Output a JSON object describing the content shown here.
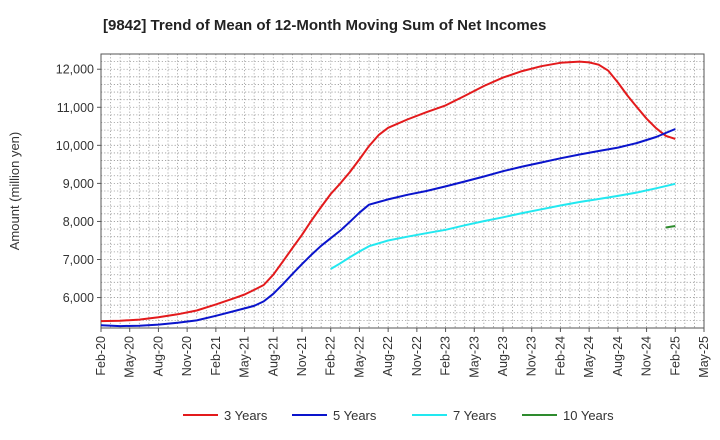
{
  "chart_data": {
    "type": "line",
    "title": "[9842]  Trend of Mean of 12-Month Moving Sum of Net Incomes",
    "xlabel": "",
    "ylabel": "Amount (million yen)",
    "ylim": [
      5200,
      12400
    ],
    "yticks": [
      6000,
      7000,
      8000,
      9000,
      10000,
      11000,
      12000
    ],
    "ytick_labels": [
      "6,000",
      "7,000",
      "8,000",
      "9,000",
      "10,000",
      "11,000",
      "12,000"
    ],
    "xticks": [
      "Feb-20",
      "May-20",
      "Aug-20",
      "Nov-20",
      "Feb-21",
      "May-21",
      "Aug-21",
      "Nov-21",
      "Feb-22",
      "May-22",
      "Aug-22",
      "Nov-22",
      "Feb-23",
      "May-23",
      "Aug-23",
      "Nov-23",
      "Feb-24",
      "May-24",
      "Aug-24",
      "Nov-24",
      "Feb-25",
      "May-25"
    ],
    "grid": true,
    "legend_position": "bottom",
    "series": [
      {
        "name": "3 Years",
        "color": "#e31a1c",
        "points": [
          [
            "Feb-20",
            5380
          ],
          [
            "Apr-20",
            5390
          ],
          [
            "Jun-20",
            5420
          ],
          [
            "Aug-20",
            5480
          ],
          [
            "Oct-20",
            5560
          ],
          [
            "Dec-20",
            5660
          ],
          [
            "Feb-21",
            5820
          ],
          [
            "Apr-21",
            5990
          ],
          [
            "May-21",
            6080
          ],
          [
            "Jun-21",
            6200
          ],
          [
            "Jul-21",
            6330
          ],
          [
            "Aug-21",
            6600
          ],
          [
            "Sep-21",
            6950
          ],
          [
            "Oct-21",
            7300
          ],
          [
            "Nov-21",
            7650
          ],
          [
            "Dec-21",
            8030
          ],
          [
            "Jan-22",
            8380
          ],
          [
            "Feb-22",
            8720
          ],
          [
            "Mar-22",
            9000
          ],
          [
            "Apr-22",
            9300
          ],
          [
            "May-22",
            9630
          ],
          [
            "Jun-22",
            9980
          ],
          [
            "Jul-22",
            10270
          ],
          [
            "Aug-22",
            10460
          ],
          [
            "Oct-22",
            10680
          ],
          [
            "Dec-22",
            10870
          ],
          [
            "Feb-23",
            11050
          ],
          [
            "Apr-23",
            11300
          ],
          [
            "Jun-23",
            11560
          ],
          [
            "Aug-23",
            11780
          ],
          [
            "Oct-23",
            11950
          ],
          [
            "Dec-23",
            12080
          ],
          [
            "Feb-24",
            12170
          ],
          [
            "Apr-24",
            12200
          ],
          [
            "May-24",
            12180
          ],
          [
            "Jun-24",
            12120
          ],
          [
            "Jul-24",
            11960
          ],
          [
            "Aug-24",
            11650
          ],
          [
            "Sep-24",
            11310
          ],
          [
            "Oct-24",
            11000
          ],
          [
            "Nov-24",
            10700
          ],
          [
            "Dec-24",
            10450
          ],
          [
            "Jan-25",
            10250
          ],
          [
            "Feb-25",
            10170
          ]
        ]
      },
      {
        "name": "5 Years",
        "color": "#0a14cc",
        "points": [
          [
            "Feb-20",
            5270
          ],
          [
            "Apr-20",
            5250
          ],
          [
            "Jun-20",
            5260
          ],
          [
            "Aug-20",
            5290
          ],
          [
            "Oct-20",
            5340
          ],
          [
            "Dec-20",
            5400
          ],
          [
            "Feb-21",
            5520
          ],
          [
            "Apr-21",
            5650
          ],
          [
            "Jun-21",
            5780
          ],
          [
            "Jul-21",
            5900
          ],
          [
            "Aug-21",
            6100
          ],
          [
            "Sep-21",
            6350
          ],
          [
            "Oct-21",
            6620
          ],
          [
            "Nov-21",
            6880
          ],
          [
            "Dec-21",
            7130
          ],
          [
            "Jan-22",
            7360
          ],
          [
            "Feb-22",
            7560
          ],
          [
            "Mar-22",
            7760
          ],
          [
            "Apr-22",
            7990
          ],
          [
            "May-22",
            8230
          ],
          [
            "Jun-22",
            8440
          ],
          [
            "Aug-22",
            8580
          ],
          [
            "Oct-22",
            8700
          ],
          [
            "Dec-22",
            8800
          ],
          [
            "Feb-23",
            8920
          ],
          [
            "Apr-23",
            9050
          ],
          [
            "Jun-23",
            9180
          ],
          [
            "Aug-23",
            9320
          ],
          [
            "Oct-23",
            9440
          ],
          [
            "Dec-23",
            9550
          ],
          [
            "Feb-24",
            9660
          ],
          [
            "Apr-24",
            9760
          ],
          [
            "Jun-24",
            9850
          ],
          [
            "Aug-24",
            9940
          ],
          [
            "Oct-24",
            10060
          ],
          [
            "Dec-24",
            10220
          ],
          [
            "Feb-25",
            10430
          ]
        ]
      },
      {
        "name": "7 Years",
        "color": "#22e8f0",
        "points": [
          [
            "Feb-22",
            6750
          ],
          [
            "Mar-22",
            6900
          ],
          [
            "Apr-22",
            7060
          ],
          [
            "May-22",
            7210
          ],
          [
            "Jun-22",
            7350
          ],
          [
            "Aug-22",
            7500
          ],
          [
            "Oct-22",
            7600
          ],
          [
            "Dec-22",
            7690
          ],
          [
            "Feb-23",
            7780
          ],
          [
            "Apr-23",
            7900
          ],
          [
            "Jun-23",
            8010
          ],
          [
            "Aug-23",
            8110
          ],
          [
            "Oct-23",
            8220
          ],
          [
            "Dec-23",
            8320
          ],
          [
            "Feb-24",
            8420
          ],
          [
            "Apr-24",
            8510
          ],
          [
            "Jun-24",
            8590
          ],
          [
            "Aug-24",
            8670
          ],
          [
            "Oct-24",
            8760
          ],
          [
            "Dec-24",
            8870
          ],
          [
            "Feb-25",
            8990
          ]
        ]
      },
      {
        "name": "10 Years",
        "color": "#2e8b2e",
        "points": [
          [
            "Jan-25",
            7840
          ],
          [
            "Feb-25",
            7880
          ]
        ]
      }
    ]
  }
}
